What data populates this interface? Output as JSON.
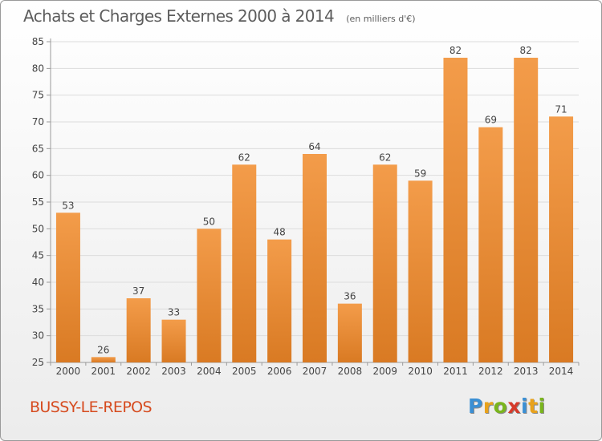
{
  "chart_data": {
    "type": "bar",
    "title": "Achats et Charges Externes 2000 à 2014",
    "unit_label": "(en milliers d'€)",
    "categories": [
      "2000",
      "2001",
      "2002",
      "2003",
      "2004",
      "2005",
      "2006",
      "2007",
      "2008",
      "2009",
      "2010",
      "2011",
      "2012",
      "2013",
      "2014"
    ],
    "values": [
      53,
      26,
      37,
      33,
      50,
      62,
      48,
      64,
      36,
      62,
      59,
      82,
      69,
      82,
      71
    ],
    "ylim": [
      25,
      85
    ],
    "yticks": [
      25,
      30,
      35,
      40,
      45,
      50,
      55,
      60,
      65,
      70,
      75,
      80,
      85
    ],
    "grid": true,
    "bar_color": "#f39c4a",
    "bar_color_dark": "#d97a23",
    "xlabel": "",
    "ylabel": ""
  },
  "location": "BUSSY-LE-REPOS",
  "brand": {
    "name": "Proxiti",
    "letters": [
      "P",
      "r",
      "o",
      "x",
      "i",
      "t",
      "i"
    ],
    "colors": [
      "#3a8fd4",
      "#e8a21c",
      "#7ab51d",
      "#d63a2a",
      "#3a8fd4",
      "#e8a21c",
      "#7ab51d"
    ]
  }
}
